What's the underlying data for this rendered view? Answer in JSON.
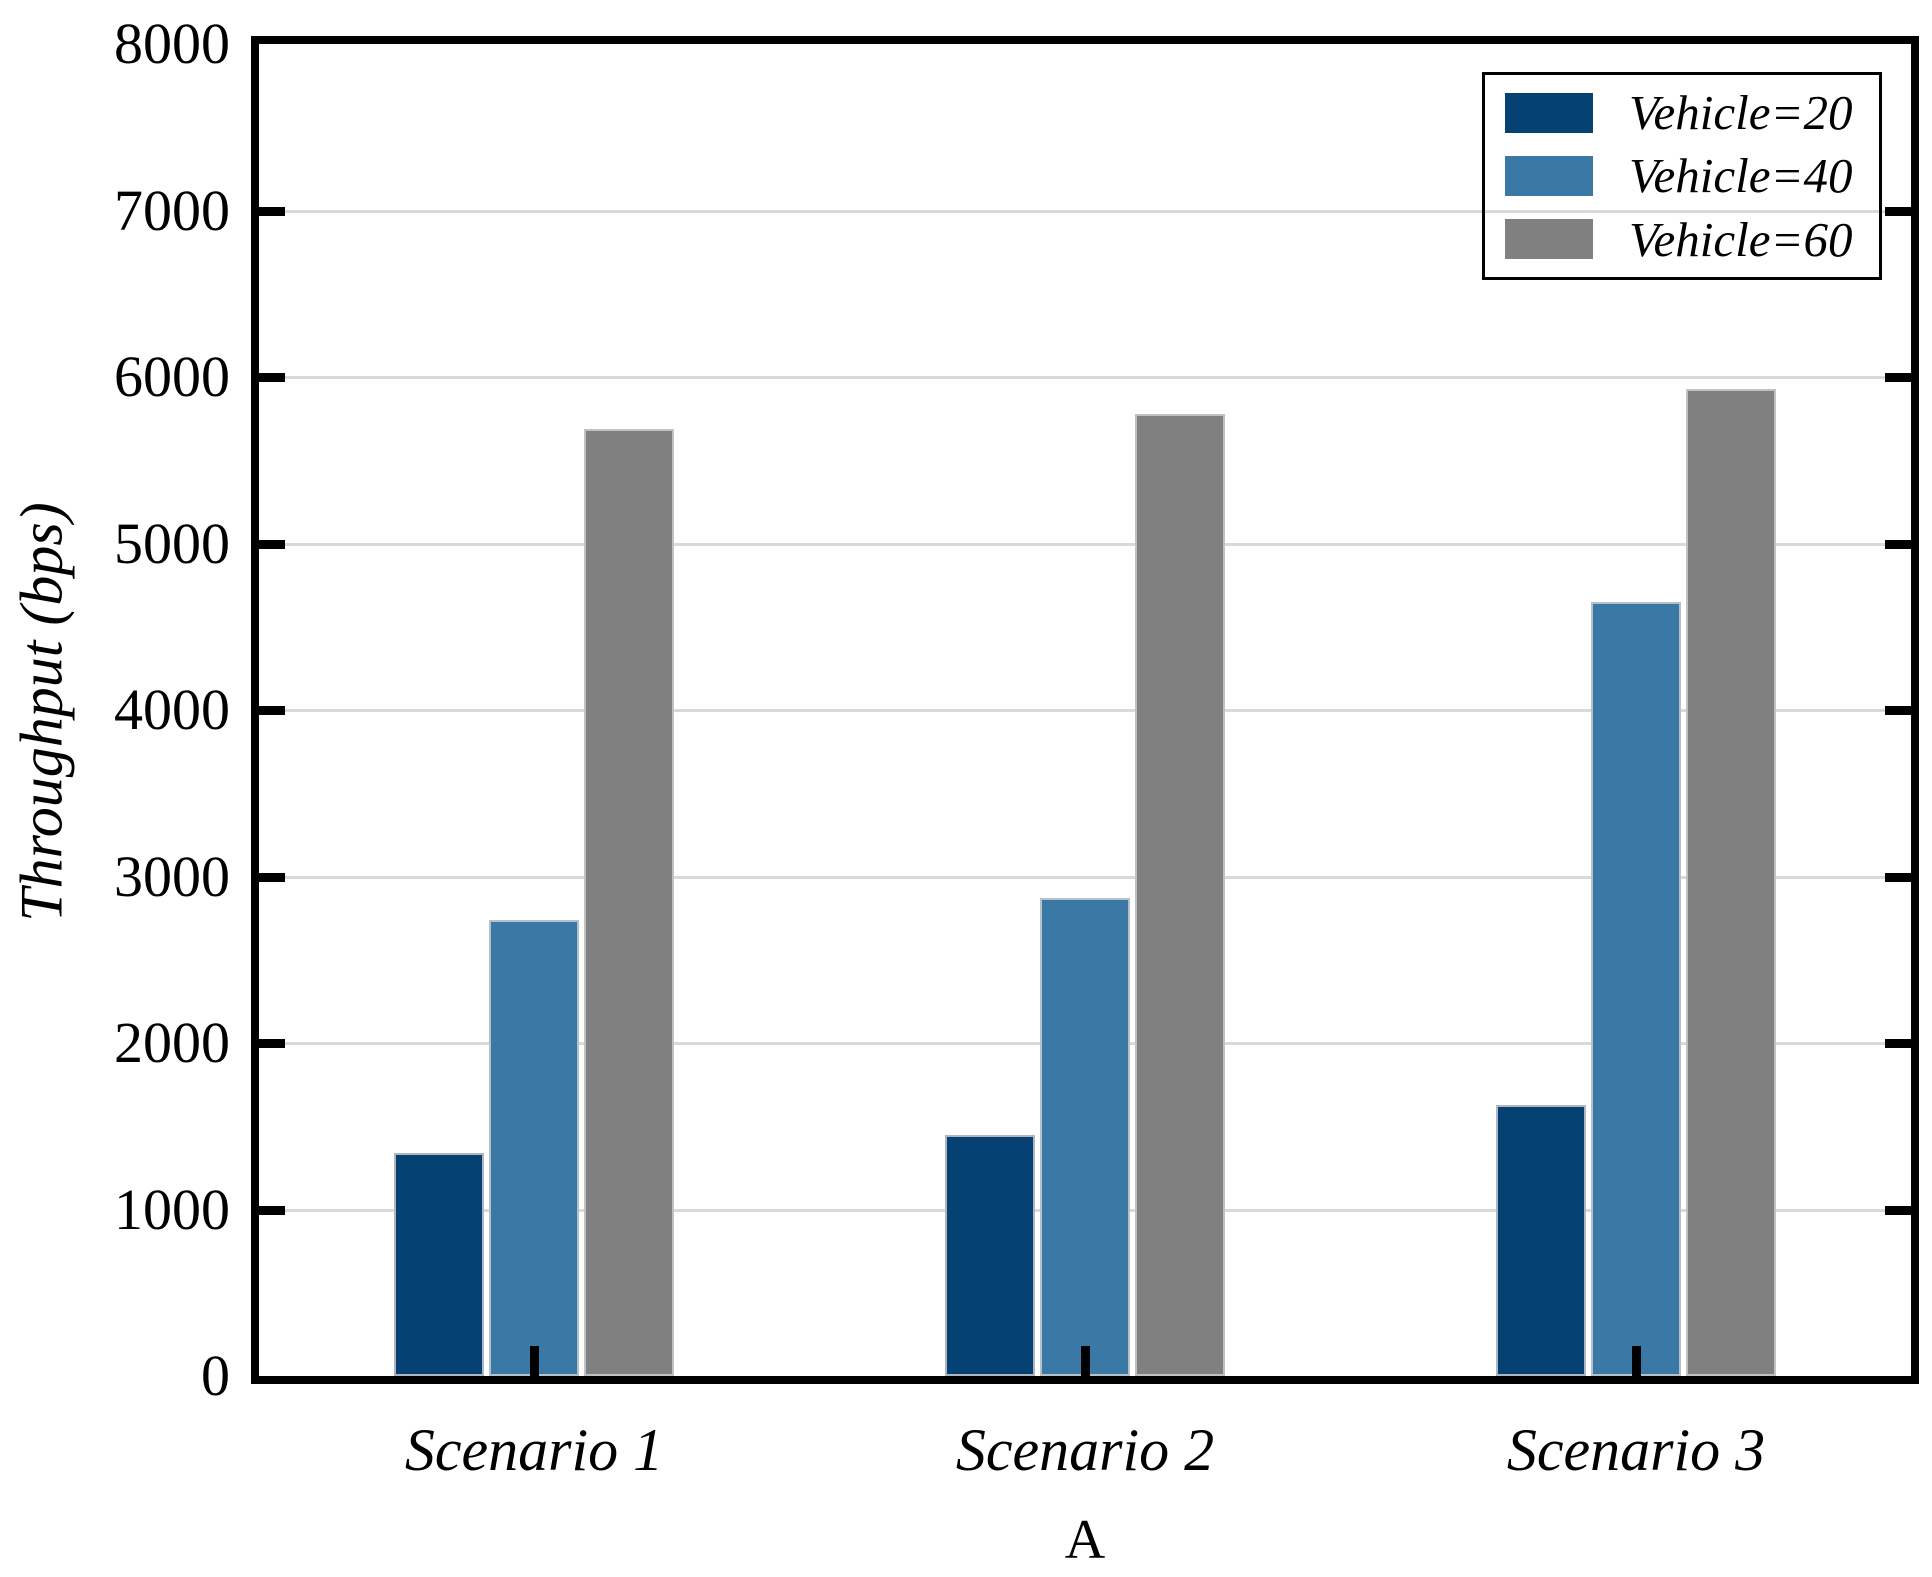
{
  "chart_data": {
    "type": "bar",
    "title": "",
    "xlabel": "A",
    "ylabel": "Throughput (bps)",
    "categories": [
      "Scenario 1",
      "Scenario 2",
      "Scenario 3"
    ],
    "series": [
      {
        "name": "Vehicle=20",
        "color": "#064173",
        "values": [
          1340,
          1450,
          1630
        ]
      },
      {
        "name": "Vehicle=40",
        "color": "#3a79a5",
        "values": [
          2740,
          2870,
          4650
        ]
      },
      {
        "name": "Vehicle=60",
        "color": "#808080",
        "values": [
          5690,
          5780,
          5930
        ]
      }
    ],
    "ylim": [
      0,
      8000
    ],
    "yticks": [
      0,
      1000,
      2000,
      3000,
      4000,
      5000,
      6000,
      7000,
      8000
    ],
    "grid": true,
    "grid_color": "#d9d9d9",
    "axis_color": "#000000",
    "legend_position": "top-right"
  }
}
